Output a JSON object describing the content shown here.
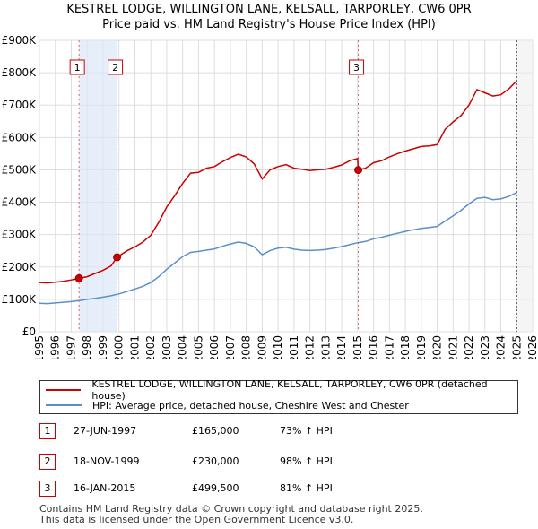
{
  "chart_data": {
    "type": "line",
    "title": "KESTREL LODGE, WILLINGTON LANE, KELSALL, TARPORLEY, CW6 0PR",
    "subtitle": "Price paid vs. HM Land Registry's House Price Index (HPI)",
    "xlabel": "",
    "ylabel": "",
    "xlim": [
      1995,
      2026
    ],
    "ylim": [
      0,
      900000
    ],
    "x_ticks": [
      "1995",
      "1996",
      "1997",
      "1998",
      "1999",
      "2000",
      "2001",
      "2002",
      "2003",
      "2004",
      "2005",
      "2006",
      "2007",
      "2008",
      "2009",
      "2010",
      "2011",
      "2012",
      "2013",
      "2014",
      "2015",
      "2016",
      "2017",
      "2018",
      "2019",
      "2020",
      "2021",
      "2022",
      "2023",
      "2024",
      "2025",
      "2026"
    ],
    "y_ticks": [
      {
        "value": 0,
        "label": "£0"
      },
      {
        "value": 100000,
        "label": "£100K"
      },
      {
        "value": 200000,
        "label": "£200K"
      },
      {
        "value": 300000,
        "label": "£300K"
      },
      {
        "value": 400000,
        "label": "£400K"
      },
      {
        "value": 500000,
        "label": "£500K"
      },
      {
        "value": 600000,
        "label": "£600K"
      },
      {
        "value": 700000,
        "label": "£700K"
      },
      {
        "value": 800000,
        "label": "£800K"
      },
      {
        "value": 900000,
        "label": "£900K"
      }
    ],
    "grid": true,
    "series": [
      {
        "name": "KESTREL LODGE, WILLINGTON LANE, KELSALL, TARPORLEY, CW6 0PR (detached house)",
        "color": "#cc0000",
        "points": [
          [
            1995.0,
            152000
          ],
          [
            1995.5,
            151000
          ],
          [
            1996.0,
            153000
          ],
          [
            1996.5,
            156000
          ],
          [
            1997.0,
            160000
          ],
          [
            1997.49,
            165000
          ],
          [
            1998.0,
            170000
          ],
          [
            1998.5,
            180000
          ],
          [
            1999.0,
            190000
          ],
          [
            1999.5,
            203000
          ],
          [
            1999.88,
            230000
          ],
          [
            2000.5,
            250000
          ],
          [
            2001.0,
            262000
          ],
          [
            2001.5,
            277000
          ],
          [
            2002.0,
            298000
          ],
          [
            2002.5,
            338000
          ],
          [
            2003.0,
            385000
          ],
          [
            2003.5,
            420000
          ],
          [
            2004.0,
            458000
          ],
          [
            2004.5,
            490000
          ],
          [
            2005.0,
            492000
          ],
          [
            2005.5,
            505000
          ],
          [
            2006.0,
            510000
          ],
          [
            2006.5,
            525000
          ],
          [
            2007.0,
            538000
          ],
          [
            2007.5,
            548000
          ],
          [
            2008.0,
            540000
          ],
          [
            2008.5,
            518000
          ],
          [
            2009.0,
            472000
          ],
          [
            2009.5,
            500000
          ],
          [
            2010.0,
            510000
          ],
          [
            2010.5,
            516000
          ],
          [
            2011.0,
            505000
          ],
          [
            2011.5,
            502000
          ],
          [
            2012.0,
            498000
          ],
          [
            2012.5,
            500000
          ],
          [
            2013.0,
            502000
          ],
          [
            2013.5,
            508000
          ],
          [
            2014.0,
            515000
          ],
          [
            2014.5,
            528000
          ],
          [
            2015.0,
            535000
          ],
          [
            2015.04,
            499500
          ],
          [
            2015.5,
            505000
          ],
          [
            2016.0,
            522000
          ],
          [
            2016.5,
            528000
          ],
          [
            2017.0,
            540000
          ],
          [
            2017.5,
            550000
          ],
          [
            2018.0,
            558000
          ],
          [
            2018.5,
            565000
          ],
          [
            2019.0,
            572000
          ],
          [
            2019.5,
            574000
          ],
          [
            2020.0,
            578000
          ],
          [
            2020.5,
            625000
          ],
          [
            2021.0,
            648000
          ],
          [
            2021.5,
            668000
          ],
          [
            2022.0,
            700000
          ],
          [
            2022.5,
            748000
          ],
          [
            2023.0,
            738000
          ],
          [
            2023.5,
            728000
          ],
          [
            2024.0,
            732000
          ],
          [
            2024.5,
            750000
          ],
          [
            2025.0,
            775000
          ]
        ]
      },
      {
        "name": "HPI: Average price, detached house, Cheshire West and Chester",
        "color": "#5b8fcc",
        "points": [
          [
            1995.0,
            88000
          ],
          [
            1995.5,
            87000
          ],
          [
            1996.0,
            89000
          ],
          [
            1996.5,
            91000
          ],
          [
            1997.0,
            93000
          ],
          [
            1997.5,
            96000
          ],
          [
            1998.0,
            100000
          ],
          [
            1998.5,
            103000
          ],
          [
            1999.0,
            107000
          ],
          [
            1999.5,
            111000
          ],
          [
            2000.0,
            117000
          ],
          [
            2000.5,
            124000
          ],
          [
            2001.0,
            132000
          ],
          [
            2001.5,
            140000
          ],
          [
            2002.0,
            152000
          ],
          [
            2002.5,
            170000
          ],
          [
            2003.0,
            193000
          ],
          [
            2003.5,
            212000
          ],
          [
            2004.0,
            232000
          ],
          [
            2004.5,
            245000
          ],
          [
            2005.0,
            248000
          ],
          [
            2005.5,
            252000
          ],
          [
            2006.0,
            256000
          ],
          [
            2006.5,
            264000
          ],
          [
            2007.0,
            271000
          ],
          [
            2007.5,
            277000
          ],
          [
            2008.0,
            273000
          ],
          [
            2008.5,
            262000
          ],
          [
            2009.0,
            238000
          ],
          [
            2009.5,
            251000
          ],
          [
            2010.0,
            258000
          ],
          [
            2010.5,
            261000
          ],
          [
            2011.0,
            255000
          ],
          [
            2011.5,
            252000
          ],
          [
            2012.0,
            251000
          ],
          [
            2012.5,
            252000
          ],
          [
            2013.0,
            254000
          ],
          [
            2013.5,
            258000
          ],
          [
            2014.0,
            263000
          ],
          [
            2014.5,
            269000
          ],
          [
            2015.0,
            275000
          ],
          [
            2015.5,
            279000
          ],
          [
            2016.0,
            287000
          ],
          [
            2016.5,
            292000
          ],
          [
            2017.0,
            298000
          ],
          [
            2017.5,
            304000
          ],
          [
            2018.0,
            310000
          ],
          [
            2018.5,
            315000
          ],
          [
            2019.0,
            319000
          ],
          [
            2019.5,
            322000
          ],
          [
            2020.0,
            325000
          ],
          [
            2020.5,
            342000
          ],
          [
            2021.0,
            358000
          ],
          [
            2021.5,
            375000
          ],
          [
            2022.0,
            395000
          ],
          [
            2022.5,
            412000
          ],
          [
            2023.0,
            415000
          ],
          [
            2023.5,
            408000
          ],
          [
            2024.0,
            410000
          ],
          [
            2024.5,
            418000
          ],
          [
            2025.0,
            430000
          ]
        ]
      }
    ],
    "annotations": [
      {
        "id": "1",
        "x": 1997.49,
        "y": 165000
      },
      {
        "id": "2",
        "x": 1999.88,
        "y": 230000
      },
      {
        "id": "3",
        "x": 2015.04,
        "y": 499500
      }
    ],
    "forecast_from": 2025.0
  },
  "legend": {
    "items": [
      "KESTREL LODGE, WILLINGTON LANE, KELSALL, TARPORLEY, CW6 0PR (detached house)",
      "HPI: Average price, detached house, Cheshire West and Chester"
    ]
  },
  "sales": [
    {
      "id": "1",
      "date": "27-JUN-1997",
      "price": "£165,000",
      "hpi": "73% ↑ HPI"
    },
    {
      "id": "2",
      "date": "18-NOV-1999",
      "price": "£230,000",
      "hpi": "98% ↑ HPI"
    },
    {
      "id": "3",
      "date": "16-JAN-2015",
      "price": "£499,500",
      "hpi": "81% ↑ HPI"
    }
  ],
  "footer": {
    "line1": "Contains HM Land Registry data © Crown copyright and database right 2025.",
    "line2": "This data is licensed under the Open Government Licence v3.0."
  }
}
